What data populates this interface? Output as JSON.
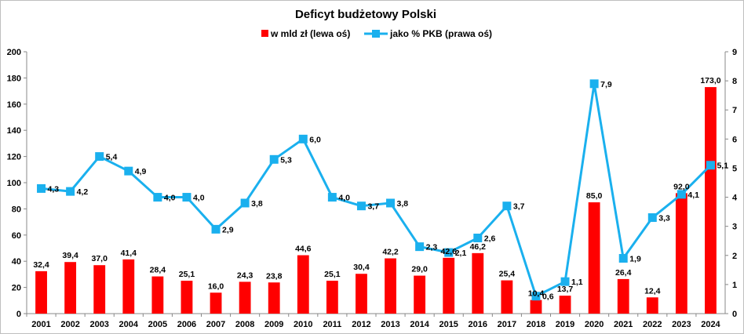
{
  "chart_data": {
    "type": "bar",
    "title": "Deficyt budżetowy Polski",
    "categories": [
      "2001",
      "2002",
      "2003",
      "2004",
      "2005",
      "2006",
      "2007",
      "2008",
      "2009",
      "2010",
      "2011",
      "2012",
      "2013",
      "2014",
      "2015",
      "2016",
      "2017",
      "2018",
      "2019",
      "2020",
      "2021",
      "2022",
      "2023",
      "2024"
    ],
    "series": [
      {
        "name": "w mld zł (lewa oś)",
        "type": "bar",
        "axis": "left",
        "color": "#ff0000",
        "values": [
          32.4,
          39.4,
          37.0,
          41.4,
          28.4,
          25.1,
          16.0,
          24.3,
          23.8,
          44.6,
          25.1,
          30.4,
          42.2,
          29.0,
          42.6,
          46.2,
          25.4,
          10.4,
          13.7,
          85.0,
          26.4,
          12.4,
          92.0,
          173.0
        ],
        "labels": [
          "32,4",
          "39,4",
          "37,0",
          "41,4",
          "28,4",
          "25,1",
          "16,0",
          "24,3",
          "23,8",
          "44,6",
          "25,1",
          "30,4",
          "42,2",
          "29,0",
          "42,6",
          "46,2",
          "25,4",
          "10,4",
          "13,7",
          "85,0",
          "26,4",
          "12,4",
          "92,0",
          "173,0"
        ]
      },
      {
        "name": "jako % PKB (prawa oś)",
        "type": "line",
        "axis": "right",
        "color": "#1ab0ee",
        "values": [
          4.3,
          4.2,
          5.4,
          4.9,
          4.0,
          4.0,
          2.9,
          3.8,
          5.3,
          6.0,
          4.0,
          3.7,
          3.8,
          2.3,
          2.1,
          2.6,
          3.7,
          0.6,
          1.1,
          7.9,
          1.9,
          3.3,
          4.1,
          5.1
        ],
        "labels": [
          "4,3",
          "4,2",
          "5,4",
          "4,9",
          "4,0",
          "4,0",
          "2,9",
          "3,8",
          "5,3",
          "6,0",
          "4,0",
          "3,7",
          "3,8",
          "2,3",
          "2,1",
          "2,6",
          "3,7",
          "0,6",
          "1,1",
          "7,9",
          "1,9",
          "3,3",
          "4,1",
          "5,1"
        ]
      }
    ],
    "y_left": {
      "min": 0,
      "max": 200,
      "ticks": [
        "0",
        "20",
        "40",
        "60",
        "80",
        "100",
        "120",
        "140",
        "160",
        "180",
        "200"
      ]
    },
    "y_right": {
      "min": 0,
      "max": 9,
      "ticks": [
        "0",
        "1",
        "2",
        "3",
        "4",
        "5",
        "6",
        "7",
        "8",
        "9"
      ]
    },
    "grid": false,
    "legend_position": "top-center"
  }
}
